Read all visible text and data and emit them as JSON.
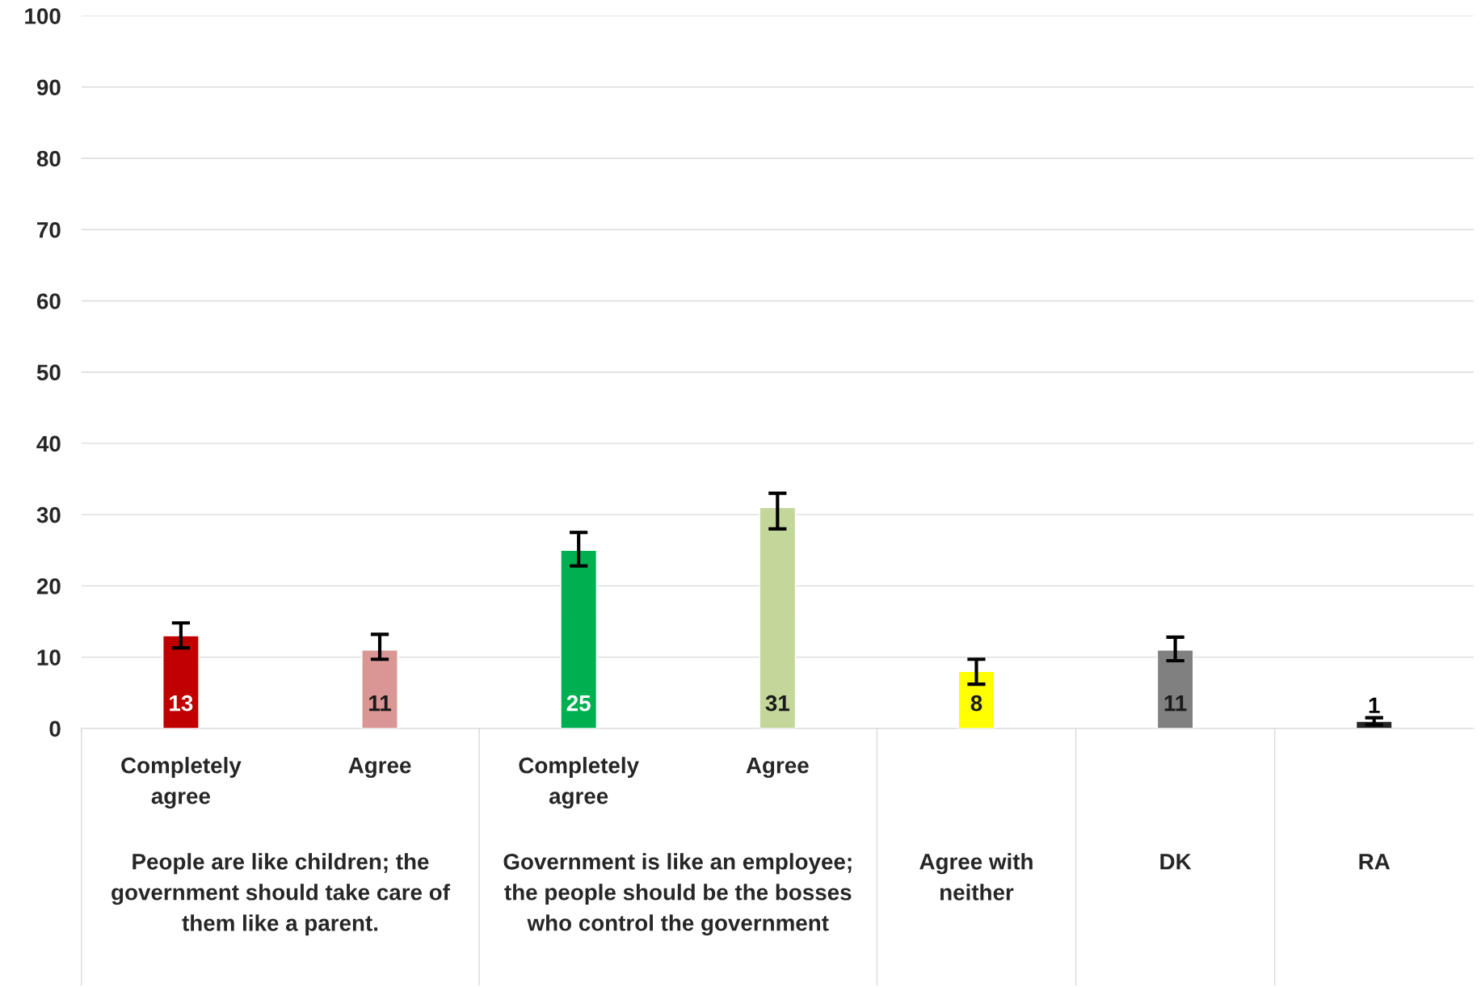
{
  "chart_data": {
    "type": "bar",
    "categories": [
      "Completely agree",
      "Agree",
      "Completely agree",
      "Agree",
      "Agree with neither",
      "DK",
      "RA"
    ],
    "values": [
      13,
      11,
      25,
      31,
      8,
      11,
      1
    ],
    "errors": [
      [
        11.3,
        14.8
      ],
      [
        9.7,
        13.2
      ],
      [
        22.8,
        27.5
      ],
      [
        28,
        33
      ],
      [
        6.2,
        9.7
      ],
      [
        9.5,
        12.8
      ],
      [
        0.5,
        1.5
      ]
    ],
    "colors": [
      "#c00000",
      "#d99694",
      "#00b050",
      "#c4d79b",
      "#ffff00",
      "#808080",
      "#262626"
    ],
    "ylim": [
      0,
      100
    ],
    "yticks": [
      0,
      10,
      20,
      30,
      40,
      50,
      60,
      70,
      80,
      90,
      100
    ],
    "grid": "y",
    "data_labels": true,
    "annotations": [
      "People are like children; the government should take care of them like a parent.",
      "Government is like an employee; the people should be the bosses who control the government"
    ]
  }
}
